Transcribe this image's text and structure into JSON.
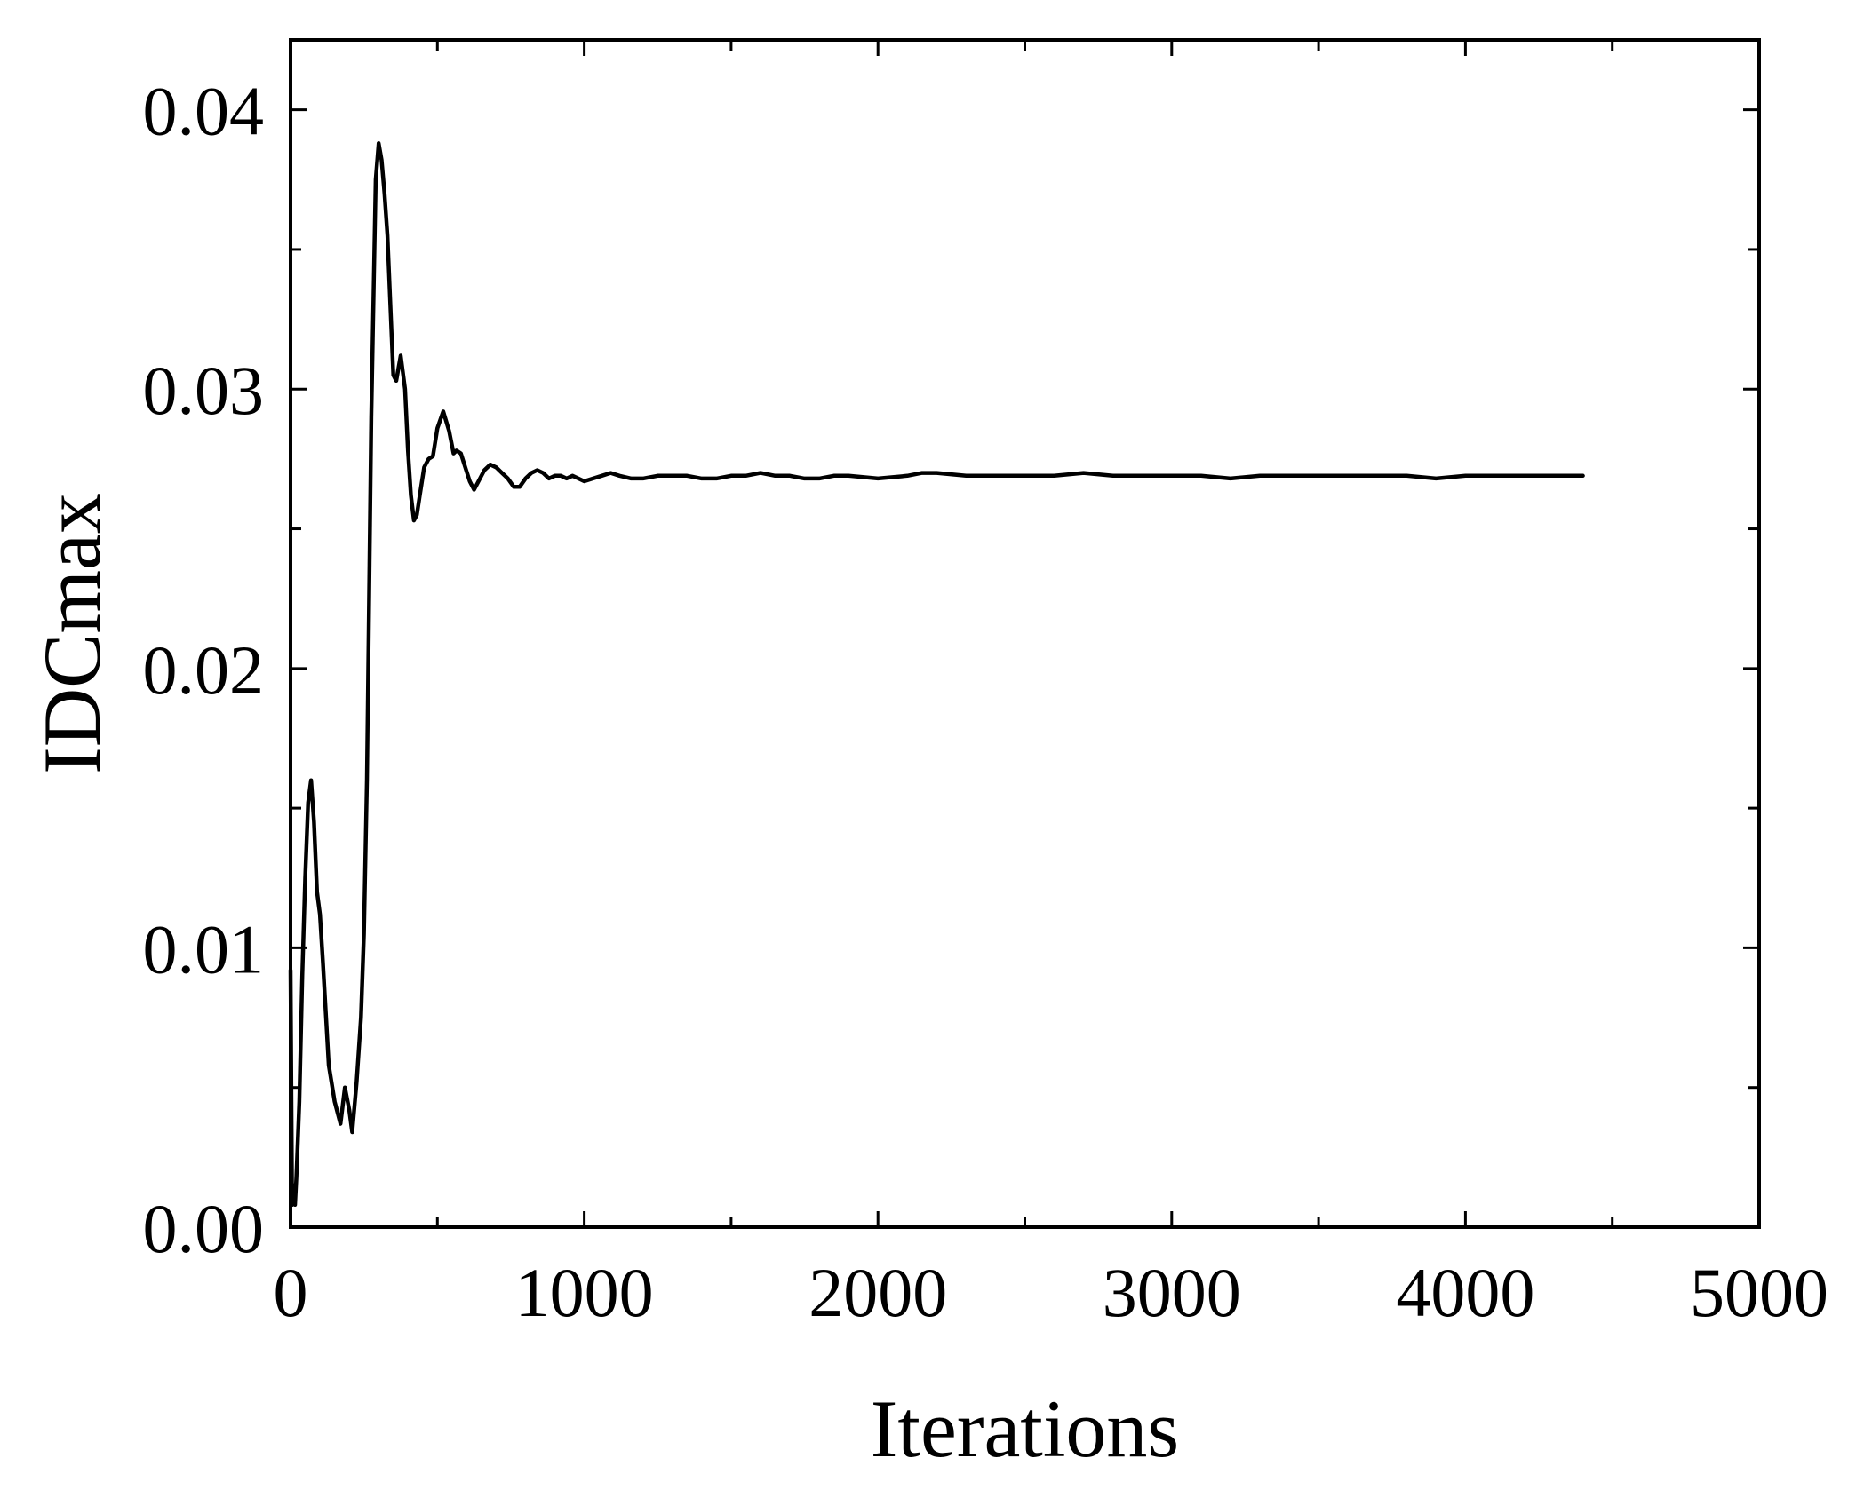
{
  "chart_data": {
    "type": "line",
    "title": "",
    "xlabel": "Iterations",
    "ylabel": "IDCmax",
    "xlim": [
      0,
      5000
    ],
    "ylim": [
      0,
      0.0425
    ],
    "x_ticks": [
      0,
      1000,
      2000,
      3000,
      4000,
      5000
    ],
    "x_tick_labels": [
      "0",
      "1000",
      "2000",
      "3000",
      "4000",
      "5000"
    ],
    "y_ticks": [
      0,
      0.01,
      0.02,
      0.03,
      0.04
    ],
    "y_tick_labels": [
      "0.00",
      "0.01",
      "0.02",
      "0.03",
      "0.04"
    ],
    "grid": false,
    "line_color": "#000000",
    "series": [
      {
        "x": [
          0,
          5,
          10,
          15,
          20,
          30,
          40,
          50,
          60,
          70,
          80,
          90,
          100,
          110,
          130,
          150,
          170,
          185,
          200,
          210,
          225,
          240,
          250,
          260,
          275,
          290,
          300,
          310,
          320,
          330,
          340,
          350,
          360,
          375,
          390,
          400,
          410,
          420,
          430,
          440,
          455,
          470,
          485,
          500,
          520,
          540,
          555,
          565,
          580,
          595,
          610,
          625,
          640,
          660,
          680,
          700,
          720,
          740,
          760,
          780,
          800,
          820,
          840,
          860,
          880,
          900,
          920,
          940,
          960,
          980,
          1000,
          1030,
          1060,
          1090,
          1120,
          1160,
          1200,
          1250,
          1300,
          1350,
          1400,
          1450,
          1500,
          1550,
          1600,
          1650,
          1700,
          1750,
          1800,
          1850,
          1900,
          2000,
          2100,
          2150,
          2200,
          2300,
          2400,
          2500,
          2600,
          2700,
          2800,
          2900,
          3000,
          3100,
          3200,
          3300,
          3400,
          3500,
          3600,
          3700,
          3800,
          3900,
          4000,
          4100,
          4200,
          4300,
          4400
        ],
        "values": [
          0.0092,
          0.0008,
          0.0015,
          0.0008,
          0.0018,
          0.0045,
          0.009,
          0.0125,
          0.0152,
          0.016,
          0.0145,
          0.012,
          0.0112,
          0.0095,
          0.0058,
          0.0045,
          0.0037,
          0.005,
          0.0042,
          0.0034,
          0.0052,
          0.0075,
          0.0105,
          0.016,
          0.029,
          0.0375,
          0.0388,
          0.0382,
          0.037,
          0.0355,
          0.033,
          0.0305,
          0.0303,
          0.0312,
          0.03,
          0.0278,
          0.0262,
          0.0253,
          0.0255,
          0.0262,
          0.0272,
          0.0275,
          0.0276,
          0.0286,
          0.0292,
          0.0285,
          0.0277,
          0.0278,
          0.0277,
          0.0272,
          0.0267,
          0.0264,
          0.0267,
          0.0271,
          0.0273,
          0.0272,
          0.027,
          0.0268,
          0.0265,
          0.0265,
          0.0268,
          0.027,
          0.0271,
          0.027,
          0.0268,
          0.0269,
          0.0269,
          0.0268,
          0.0269,
          0.0268,
          0.0267,
          0.0268,
          0.0269,
          0.027,
          0.0269,
          0.0268,
          0.0268,
          0.0269,
          0.0269,
          0.0269,
          0.0268,
          0.0268,
          0.0269,
          0.0269,
          0.027,
          0.0269,
          0.0269,
          0.0268,
          0.0268,
          0.0269,
          0.0269,
          0.0268,
          0.0269,
          0.027,
          0.027,
          0.0269,
          0.0269,
          0.0269,
          0.0269,
          0.027,
          0.0269,
          0.0269,
          0.0269,
          0.0269,
          0.0268,
          0.0269,
          0.0269,
          0.0269,
          0.0269,
          0.0269,
          0.0269,
          0.0268,
          0.0269,
          0.0269,
          0.0269,
          0.0269,
          0.0269
        ]
      }
    ]
  }
}
